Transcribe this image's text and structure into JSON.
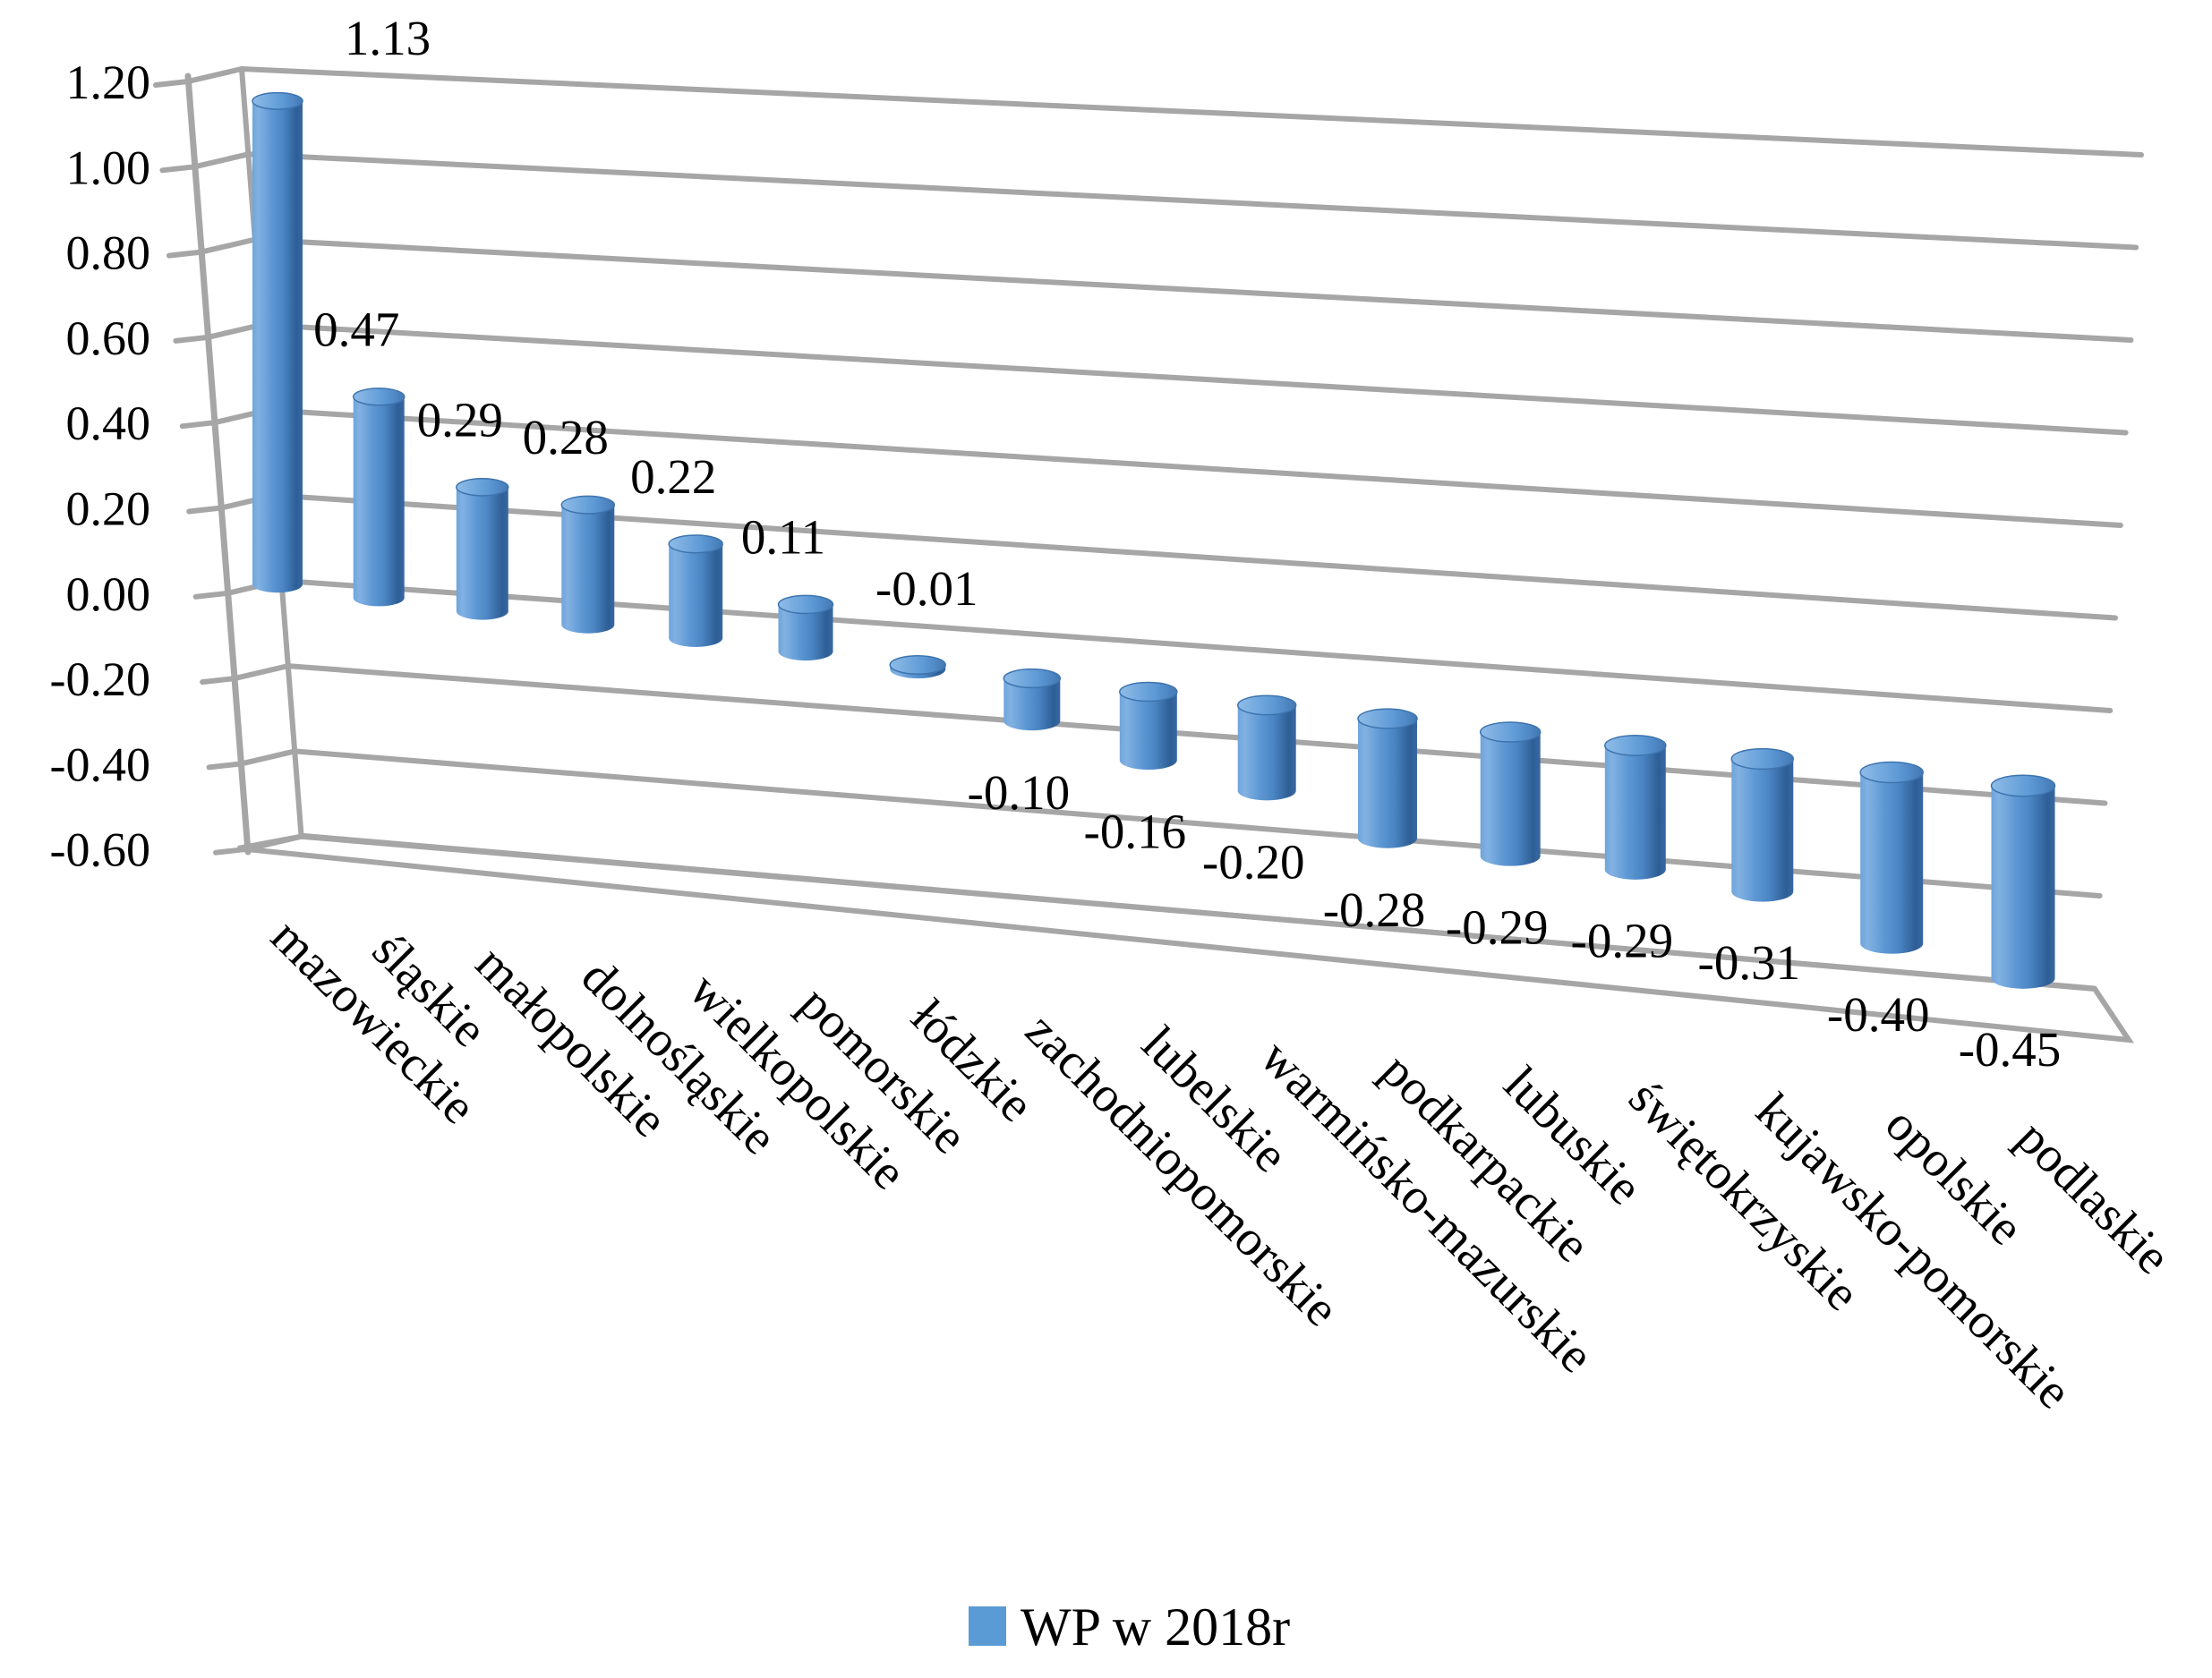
{
  "chart_data": {
    "type": "bar",
    "subtype": "3d-cylinder",
    "title": "",
    "xlabel": "",
    "ylabel": "",
    "categories": [
      "mazowieckie",
      "śląskie",
      "małopolskie",
      "dolnośląskie",
      "wielkopolskie",
      "pomorskie",
      "łódzkie",
      "zachodniopomorskie",
      "lubelskie",
      "warmińsko-mazurskie",
      "podkarpackie",
      "lubuskie",
      "świętokrzyskie",
      "kujawsko-pomorskie",
      "opolskie",
      "podlaskie"
    ],
    "values": [
      1.13,
      0.47,
      0.29,
      0.28,
      0.22,
      0.11,
      -0.01,
      -0.1,
      -0.16,
      -0.2,
      -0.28,
      -0.29,
      -0.29,
      -0.31,
      -0.4,
      -0.45
    ],
    "value_labels": [
      "1.13",
      "0.47",
      "0.29",
      "0.28",
      "0.22",
      "0.11",
      "-0.01",
      "-0.10",
      "-0.16",
      "-0.20",
      "-0.28",
      "-0.29",
      "-0.29",
      "-0.31",
      "-0.40",
      "-0.45"
    ],
    "ylim": [
      -0.6,
      1.2
    ],
    "yticks": [
      "1.20",
      "1.00",
      "0.80",
      "0.60",
      "0.40",
      "0.20",
      "0.00",
      "-0.20",
      "-0.40",
      "-0.60"
    ],
    "ytick_values": [
      1.2,
      1.0,
      0.8,
      0.6,
      0.4,
      0.2,
      0.0,
      -0.2,
      -0.4,
      -0.6
    ],
    "grid": true,
    "legend_position": "bottom",
    "legend": [
      {
        "label": "WP w 2018r",
        "color": "#5B9BD5"
      }
    ]
  },
  "colors": {
    "bar_main": "#5B9BD5",
    "bar_light": "#82B1E2",
    "bar_dark": "#2E5E95",
    "gridline": "#A6A6A6",
    "text": "#000000",
    "background": "#FFFFFF"
  }
}
